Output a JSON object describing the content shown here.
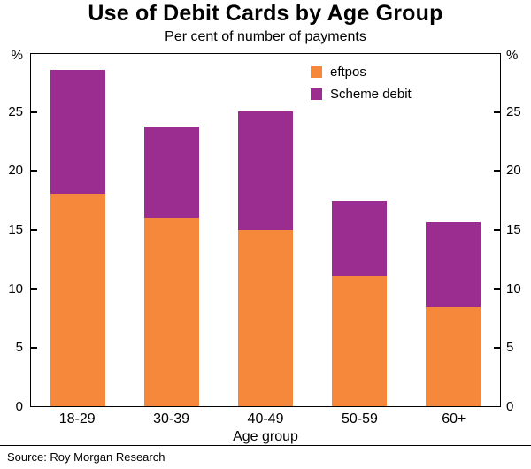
{
  "chart_data": {
    "type": "bar",
    "stacked": true,
    "title": "Use of Debit Cards by Age Group",
    "subtitle": "Per cent of number of payments",
    "categories": [
      "18-29",
      "30-39",
      "40-49",
      "50-59",
      "60+"
    ],
    "series": [
      {
        "name": "eftpos",
        "color": "#F5883B",
        "values": [
          18.0,
          16.0,
          14.9,
          11.0,
          8.4
        ]
      },
      {
        "name": "Scheme debit",
        "color": "#9B2D90",
        "values": [
          10.5,
          7.7,
          10.1,
          6.4,
          7.2
        ]
      }
    ],
    "totals": [
      28.5,
      23.7,
      25.0,
      17.4,
      15.6
    ],
    "xlabel": "Age group",
    "ylabel_left": "%",
    "ylabel_right": "%",
    "ylim": [
      0,
      30
    ],
    "yticks": [
      0,
      5,
      10,
      15,
      20,
      25
    ],
    "legend_position": "top-right",
    "grid": false
  },
  "footer": {
    "source": "Source: Roy Morgan Research"
  }
}
